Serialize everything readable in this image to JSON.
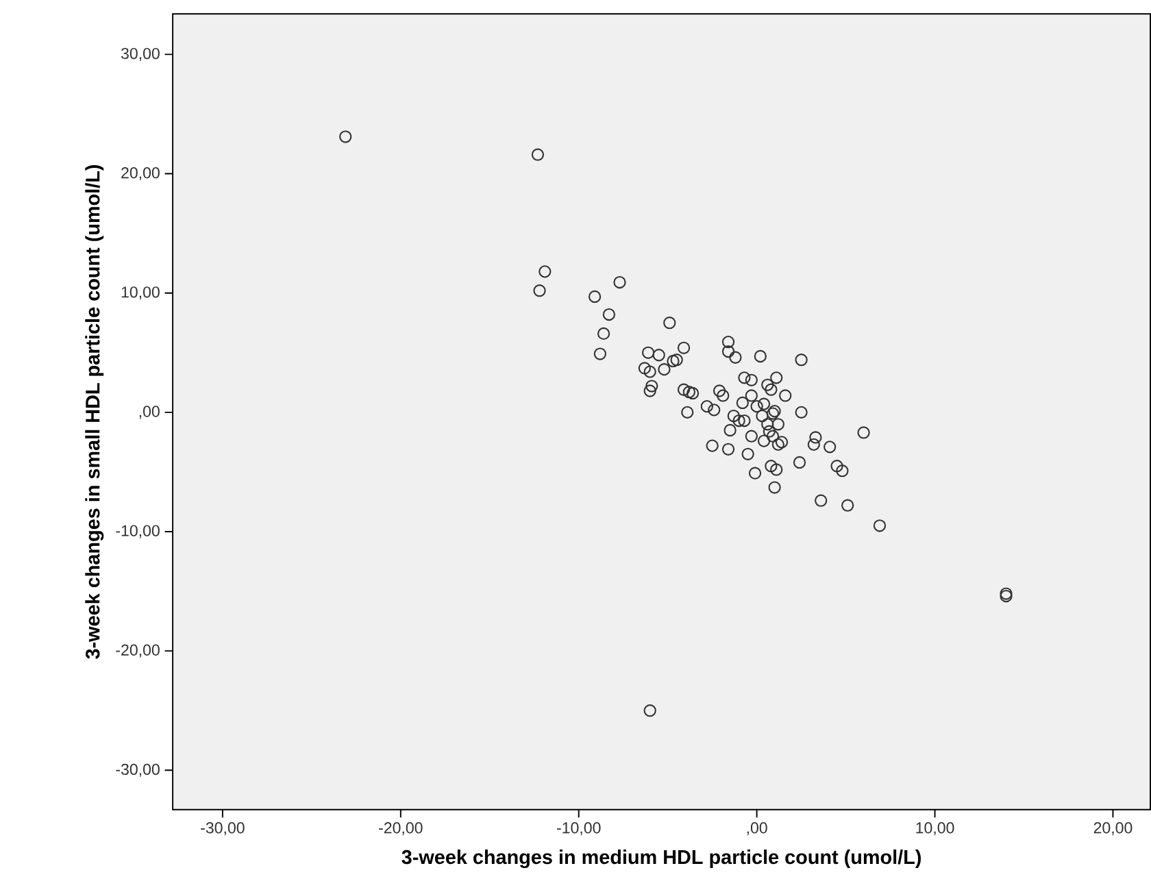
{
  "chart_data": {
    "type": "scatter",
    "xlabel": "3-week changes in medium HDL particle count (umol/L)",
    "ylabel": "3-week changes in small HDL particle count  (umol/L)",
    "x": [
      -23.1,
      -12.3,
      -11.9,
      -12.2,
      -7.7,
      -9.1,
      -8.3,
      -8.6,
      -8.8,
      -4.9,
      -6.1,
      -5.5,
      -4.1,
      -4.7,
      -4.5,
      -6.3,
      -6.0,
      -5.2,
      -5.9,
      -6.0,
      -4.1,
      -3.8,
      -3.6,
      -3.9,
      -1.6,
      -1.6,
      -1.2,
      0.2,
      2.5,
      -0.7,
      -0.3,
      1.1,
      0.6,
      0.8,
      1.6,
      -2.1,
      -1.9,
      -0.8,
      -0.3,
      0.0,
      0.4,
      0.3,
      0.9,
      1.0,
      2.5,
      -2.8,
      -2.4,
      -1.3,
      -1.0,
      -0.7,
      -1.5,
      0.6,
      1.2,
      0.9,
      0.7,
      -0.3,
      0.4,
      1.4,
      1.2,
      3.3,
      3.2,
      4.1,
      6.0,
      -2.5,
      -1.6,
      -0.5,
      2.4,
      0.8,
      1.1,
      -0.1,
      4.5,
      4.8,
      1.0,
      3.6,
      5.1,
      6.9,
      14.0,
      14.0,
      -6.0
    ],
    "values": [
      23.1,
      21.6,
      11.8,
      10.2,
      10.9,
      9.7,
      8.2,
      6.6,
      4.9,
      7.5,
      5.0,
      4.8,
      5.4,
      4.3,
      4.4,
      3.7,
      3.4,
      3.6,
      2.2,
      1.8,
      1.9,
      1.7,
      1.6,
      0.0,
      5.9,
      5.1,
      4.6,
      4.7,
      4.4,
      2.9,
      2.7,
      2.9,
      2.3,
      1.9,
      1.4,
      1.8,
      1.4,
      0.8,
      1.4,
      0.5,
      0.7,
      -0.3,
      -0.1,
      0.1,
      0.0,
      0.5,
      0.2,
      -0.3,
      -0.7,
      -0.7,
      -1.5,
      -1.0,
      -1.0,
      -2.0,
      -1.6,
      -2.0,
      -2.4,
      -2.5,
      -2.7,
      -2.1,
      -2.7,
      -2.9,
      -1.7,
      -2.8,
      -3.1,
      -3.5,
      -4.2,
      -4.5,
      -4.8,
      -5.1,
      -4.5,
      -4.9,
      -6.3,
      -7.4,
      -7.8,
      -9.5,
      -15.2,
      -15.4,
      -25.0
    ],
    "color": "#333333",
    "marker": "circle",
    "xlim": [
      -32.8,
      22.1
    ],
    "ylim": [
      -33.3,
      33.4
    ],
    "xticks": [
      {
        "value": -30,
        "label": "-30,00"
      },
      {
        "value": -20,
        "label": "-20,00"
      },
      {
        "value": -10,
        "label": "-10,00"
      },
      {
        "value": 0,
        "label": ",00"
      },
      {
        "value": 10,
        "label": "10,00"
      },
      {
        "value": 20,
        "label": "20,00"
      }
    ],
    "yticks": [
      {
        "value": -30,
        "label": "-30,00"
      },
      {
        "value": -20,
        "label": "-20,00"
      },
      {
        "value": -10,
        "label": "-10,00"
      },
      {
        "value": 0,
        "label": ",00"
      },
      {
        "value": 10,
        "label": "10,00"
      },
      {
        "value": 20,
        "label": "20,00"
      },
      {
        "value": 30,
        "label": "30,00"
      }
    ]
  }
}
